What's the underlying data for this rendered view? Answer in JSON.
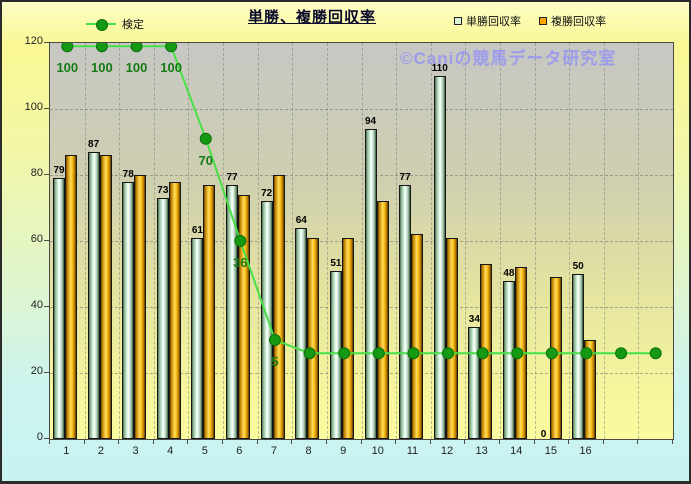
{
  "title": "単勝、複勝回収率",
  "watermark": "©Caniの競馬データ研究室",
  "legend": {
    "line_label": "検定",
    "bar1_label": "単勝回収率",
    "bar2_label": "複勝回収率"
  },
  "colors": {
    "title": "#0a0a2a",
    "line": "#47e147",
    "marker_fill": "#169912",
    "marker_stroke": "#0b6e0b",
    "line_label": "#157a15",
    "bar1_center": "#eafff2",
    "bar2_center": "#ffc61e",
    "legend_sq1": "#d9f2d9",
    "legend_sq2": "#ffa500",
    "watermark": "#9898f0"
  },
  "chart_data": {
    "type": "bar+line",
    "title": "単勝、複勝回収率",
    "categories": [
      "1",
      "2",
      "3",
      "4",
      "5",
      "6",
      "7",
      "8",
      "9",
      "10",
      "11",
      "12",
      "13",
      "14",
      "15",
      "16",
      "",
      ""
    ],
    "ylim": [
      0,
      120
    ],
    "yticks": [
      0,
      20,
      40,
      60,
      80,
      100,
      120
    ],
    "grid": true,
    "legend_position": "top",
    "series": [
      {
        "name": "単勝回収率",
        "type": "bar",
        "values": [
          79,
          87,
          78,
          73,
          61,
          77,
          72,
          64,
          51,
          94,
          77,
          110,
          34,
          48,
          0,
          50
        ],
        "labels_shown": true
      },
      {
        "name": "複勝回収率",
        "type": "bar",
        "values": [
          86,
          86,
          80,
          78,
          77,
          74,
          80,
          61,
          61,
          72,
          62,
          61,
          53,
          52,
          49,
          30
        ],
        "labels_shown": false
      },
      {
        "name": "検定",
        "type": "line",
        "point_labels": [
          "100",
          "100",
          "100",
          "100",
          "70",
          "36",
          "5",
          "",
          "",
          "",
          "",
          "",
          "",
          "",
          "",
          "",
          "",
          ""
        ],
        "plotted_values": [
          119,
          119,
          119,
          119,
          91,
          60,
          30,
          26,
          26,
          26,
          26,
          26,
          26,
          26,
          26,
          26,
          26,
          26
        ]
      }
    ]
  }
}
